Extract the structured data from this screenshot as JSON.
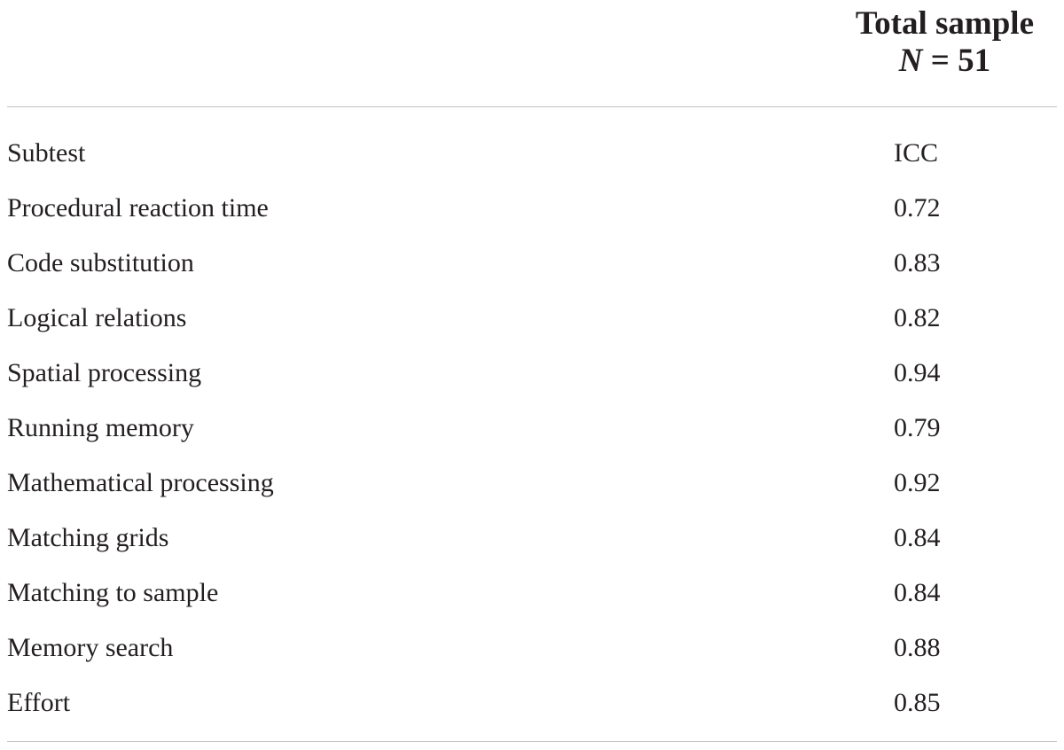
{
  "table": {
    "column_header": {
      "title": "Total sample",
      "n_symbol": "N",
      "n_equals": "= 51"
    },
    "subheader": {
      "label": "Subtest",
      "value": "ICC"
    },
    "rows": [
      {
        "label": "Procedural reaction time",
        "value": "0.72"
      },
      {
        "label": "Code substitution",
        "value": "0.83"
      },
      {
        "label": "Logical relations",
        "value": "0.82"
      },
      {
        "label": "Spatial processing",
        "value": "0.94"
      },
      {
        "label": "Running memory",
        "value": "0.79"
      },
      {
        "label": "Mathematical processing",
        "value": "0.92"
      },
      {
        "label": "Matching grids",
        "value": "0.84"
      },
      {
        "label": "Matching to sample",
        "value": "0.84"
      },
      {
        "label": "Memory search",
        "value": "0.88"
      },
      {
        "label": "Effort",
        "value": "0.85"
      }
    ]
  },
  "colors": {
    "text": "#231f20",
    "rule": "#bfbfbf"
  }
}
